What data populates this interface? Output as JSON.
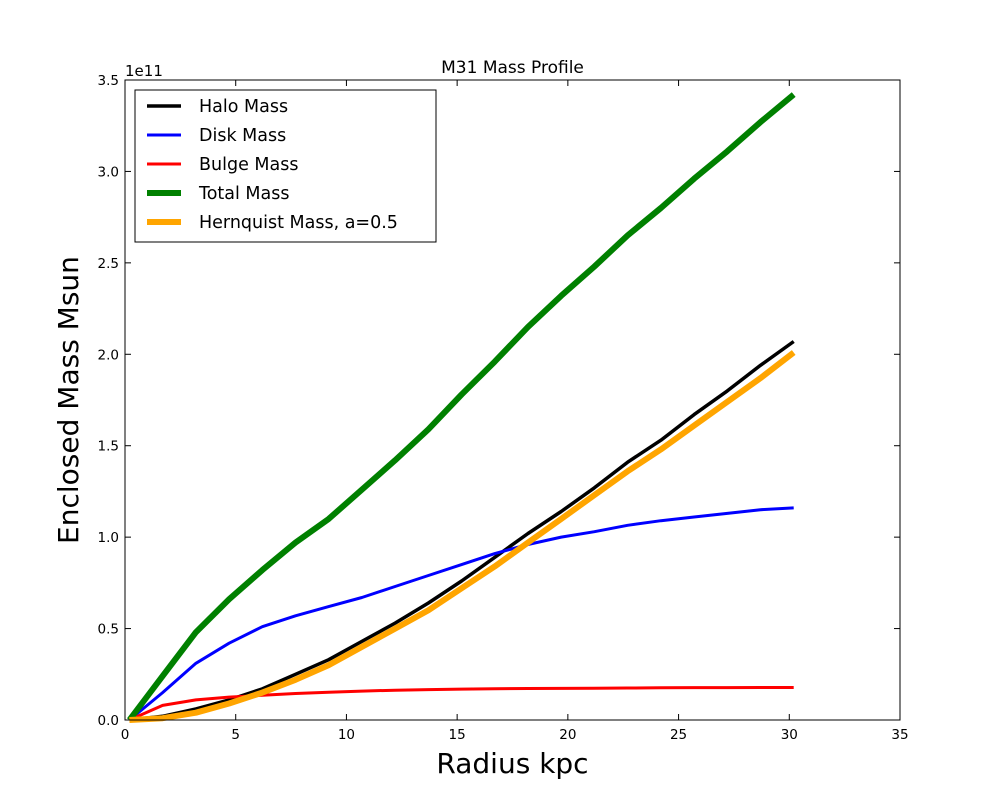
{
  "chart_data": {
    "type": "line",
    "title": "M31 Mass Profile",
    "xlabel": "Radius kpc",
    "ylabel": "Enclosed Mass Msun",
    "y_offset_label": "1e11",
    "xlim": [
      0,
      35
    ],
    "ylim": [
      0,
      3.5
    ],
    "x_ticks": [
      0,
      5,
      10,
      15,
      20,
      25,
      30,
      35
    ],
    "x_tick_labels": [
      "0",
      "5",
      "10",
      "15",
      "20",
      "25",
      "30",
      "35"
    ],
    "y_ticks": [
      0,
      0.5,
      1.0,
      1.5,
      2.0,
      2.5,
      3.0,
      3.5
    ],
    "y_tick_labels": [
      "0.0",
      "0.5",
      "1.0",
      "1.5",
      "2.0",
      "2.5",
      "3.0",
      "3.5"
    ],
    "grid": false,
    "legend_position": "top-left",
    "x": [
      0.2,
      1.7,
      3.2,
      4.7,
      6.2,
      7.7,
      9.2,
      10.7,
      12.2,
      13.7,
      15.2,
      16.7,
      18.2,
      19.7,
      21.2,
      22.7,
      24.2,
      25.7,
      27.2,
      28.7,
      30.2
    ],
    "series": [
      {
        "name": "Halo Mass",
        "color": "#000000",
        "width": 3.5,
        "values": [
          0.0,
          0.02,
          0.06,
          0.11,
          0.17,
          0.25,
          0.33,
          0.43,
          0.53,
          0.64,
          0.76,
          0.89,
          1.02,
          1.14,
          1.27,
          1.41,
          1.53,
          1.67,
          1.8,
          1.94,
          2.07
        ]
      },
      {
        "name": "Disk Mass",
        "color": "#0000ff",
        "width": 3,
        "values": [
          0.0,
          0.15,
          0.31,
          0.42,
          0.51,
          0.57,
          0.62,
          0.67,
          0.73,
          0.79,
          0.85,
          0.91,
          0.96,
          1.0,
          1.03,
          1.065,
          1.09,
          1.11,
          1.13,
          1.15,
          1.16
        ]
      },
      {
        "name": "Bulge Mass",
        "color": "#ff0000",
        "width": 3,
        "values": [
          0.0,
          0.08,
          0.11,
          0.125,
          0.135,
          0.145,
          0.152,
          0.158,
          0.163,
          0.166,
          0.169,
          0.171,
          0.172,
          0.173,
          0.174,
          0.175,
          0.176,
          0.177,
          0.177,
          0.178,
          0.178
        ]
      },
      {
        "name": "Total Mass",
        "color": "#008000",
        "width": 6,
        "values": [
          0.0,
          0.24,
          0.48,
          0.66,
          0.82,
          0.97,
          1.1,
          1.26,
          1.42,
          1.59,
          1.78,
          1.96,
          2.15,
          2.32,
          2.48,
          2.65,
          2.8,
          2.96,
          3.11,
          3.27,
          3.42
        ]
      },
      {
        "name": "Hernquist Mass, a=0.5",
        "color": "#ffa500",
        "width": 6,
        "values": [
          0.0,
          0.01,
          0.04,
          0.09,
          0.15,
          0.22,
          0.3,
          0.4,
          0.5,
          0.6,
          0.72,
          0.84,
          0.97,
          1.1,
          1.23,
          1.36,
          1.48,
          1.61,
          1.74,
          1.87,
          2.01
        ]
      }
    ]
  }
}
